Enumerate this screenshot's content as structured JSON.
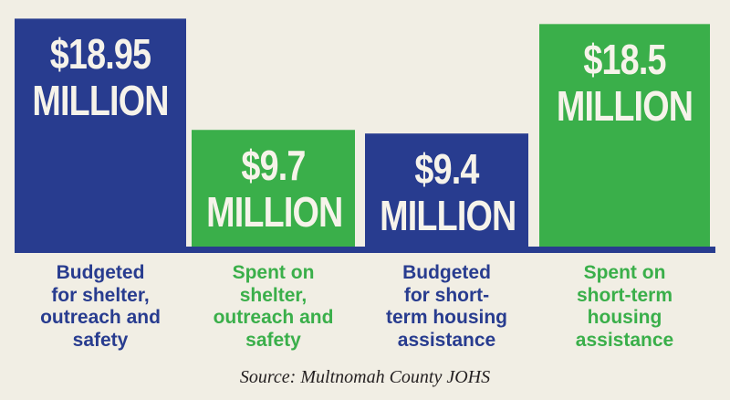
{
  "colors": {
    "blue": "#283c8f",
    "green": "#3aaf4a",
    "background": "#f1eee4",
    "baseline": "#283c8f"
  },
  "chart_data": {
    "type": "bar",
    "title": "",
    "xlabel": "",
    "ylabel": "",
    "ylim": [
      0,
      20.5
    ],
    "grid": false,
    "legend": "none",
    "categories": [
      "Budgeted for shelter, outreach and safety",
      "Spent on shelter, outreach and safety",
      "Budgeted for short-term housing assistance",
      "Spent on short-term housing assistance"
    ],
    "values": [
      18.95,
      9.7,
      9.4,
      18.5
    ],
    "bar_colors": [
      "#283c8f",
      "#3aaf4a",
      "#283c8f",
      "#3aaf4a"
    ],
    "value_labels": [
      {
        "amount": "$18.95",
        "unit": "MILLION"
      },
      {
        "amount": "$9.7",
        "unit": "MILLION"
      },
      {
        "amount": "$9.4",
        "unit": "MILLION"
      },
      {
        "amount": "$18.5",
        "unit": "MILLION"
      }
    ],
    "category_lines": [
      [
        "Budgeted",
        "for shelter,",
        "outreach and",
        "safety"
      ],
      [
        "Spent on",
        "shelter,",
        "outreach and",
        "safety"
      ],
      [
        "Budgeted",
        "for short-",
        "term housing",
        "assistance"
      ],
      [
        "Spent on",
        "short-term",
        "housing",
        "assistance"
      ]
    ]
  },
  "source": "Source: Multnomah County JOHS"
}
